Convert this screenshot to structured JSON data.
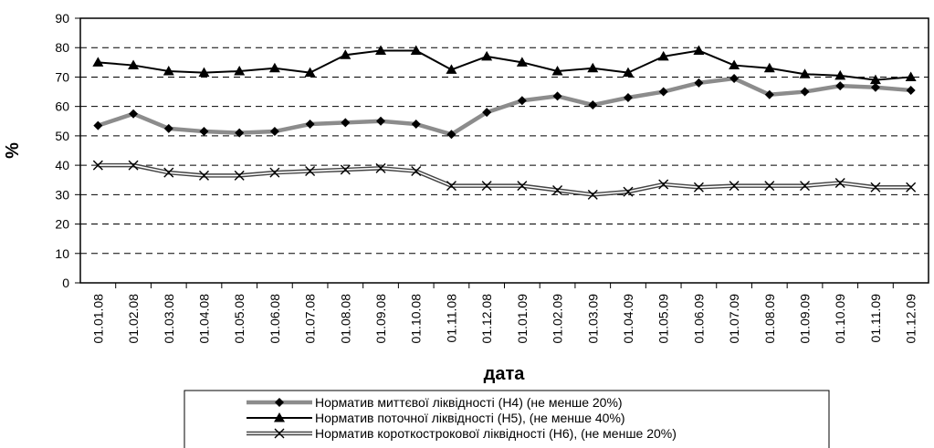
{
  "chart_data": {
    "type": "line",
    "xlabel": "дата",
    "ylabel": "%",
    "ylim": [
      0,
      90
    ],
    "yticks": [
      0,
      10,
      20,
      30,
      40,
      50,
      60,
      70,
      80,
      90
    ],
    "grid": "horizontal dashed",
    "legend_position": "bottom",
    "categories": [
      "01.01.08",
      "01.02.08",
      "01.03.08",
      "01.04.08",
      "01.05.08",
      "01.06.08",
      "01.07.08",
      "01.08.08",
      "01.09.08",
      "01.10.08",
      "01.11.08",
      "01.12.08",
      "01.01.09",
      "01.02.09",
      "01.03.09",
      "01.04.09",
      "01.05.09",
      "01.06.09",
      "01.07.09",
      "01.08.09",
      "01.09.09",
      "01.10.09",
      "01.11.09",
      "01.12.09"
    ],
    "series": [
      {
        "name": "Норматив миттєвої ліквідності (Н4) (не менше 20%)",
        "marker": "diamond",
        "color": "#888888",
        "values": [
          53.5,
          57.5,
          52.5,
          51.5,
          51,
          51.5,
          54,
          54.5,
          55,
          54,
          50.5,
          58,
          62,
          63.5,
          60.5,
          63,
          65,
          68,
          69.5,
          64,
          65,
          67,
          66.5,
          65.5
        ]
      },
      {
        "name": "Норматив поточної ліквідності (Н5), (не менше 40%)",
        "marker": "triangle",
        "color": "#000000",
        "values": [
          75,
          74,
          72,
          71.5,
          72,
          73,
          71.5,
          77.5,
          79,
          79,
          72.5,
          77,
          75,
          72,
          73,
          71.5,
          77,
          79,
          74,
          73,
          71,
          70.5,
          69,
          70
        ]
      },
      {
        "name": "Норматив короткострокової ліквідності (Н6), (не менше 20%)",
        "marker": "x",
        "color": "#555555",
        "values": [
          40,
          40,
          37.5,
          36.5,
          36.5,
          37.5,
          38,
          38.5,
          39,
          38,
          33,
          33,
          33,
          31.5,
          30,
          31,
          33.5,
          32.5,
          33,
          33,
          33,
          34,
          32.5,
          32.5
        ]
      }
    ]
  }
}
